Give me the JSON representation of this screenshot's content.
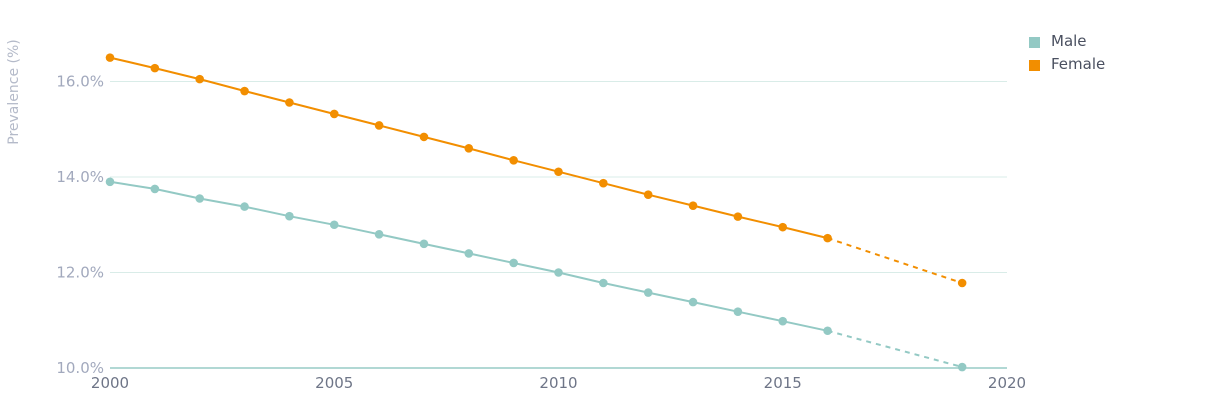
{
  "chart_data": {
    "type": "line",
    "title": "",
    "xlabel": "",
    "ylabel": "Prevalence (%)",
    "xlim": [
      2000,
      2020
    ],
    "ylim": [
      10,
      17
    ],
    "x_ticks": [
      2000,
      2005,
      2010,
      2015,
      2020
    ],
    "x_tick_labels": [
      "2000",
      "2005",
      "2010",
      "2015",
      "2020"
    ],
    "y_ticks": [
      10,
      12,
      14,
      16
    ],
    "y_tick_labels": [
      "10.0%",
      "12.0%",
      "14.0%",
      "16.0%"
    ],
    "grid": true,
    "legend": "top-right",
    "series": [
      {
        "name": "Male",
        "color": "#93c9c4",
        "observed": {
          "x": [
            2000,
            2001,
            2002,
            2003,
            2004,
            2005,
            2006,
            2007,
            2008,
            2009,
            2010,
            2011,
            2012,
            2013,
            2014,
            2015,
            2016
          ],
          "y": [
            13.9,
            13.75,
            13.55,
            13.38,
            13.18,
            13.0,
            12.8,
            12.6,
            12.4,
            12.2,
            12.0,
            11.78,
            11.58,
            11.38,
            11.18,
            10.98,
            10.78
          ]
        },
        "projected": {
          "x": [
            2016,
            2019
          ],
          "y": [
            10.78,
            10.02
          ]
        }
      },
      {
        "name": "Female",
        "color": "#f28e00",
        "observed": {
          "x": [
            2000,
            2001,
            2002,
            2003,
            2004,
            2005,
            2006,
            2007,
            2008,
            2009,
            2010,
            2011,
            2012,
            2013,
            2014,
            2015,
            2016
          ],
          "y": [
            16.5,
            16.28,
            16.05,
            15.8,
            15.56,
            15.32,
            15.08,
            14.84,
            14.6,
            14.35,
            14.11,
            13.87,
            13.63,
            13.4,
            13.17,
            12.95,
            12.72
          ]
        },
        "projected": {
          "x": [
            2016,
            2019
          ],
          "y": [
            12.72,
            11.78
          ]
        }
      }
    ]
  }
}
